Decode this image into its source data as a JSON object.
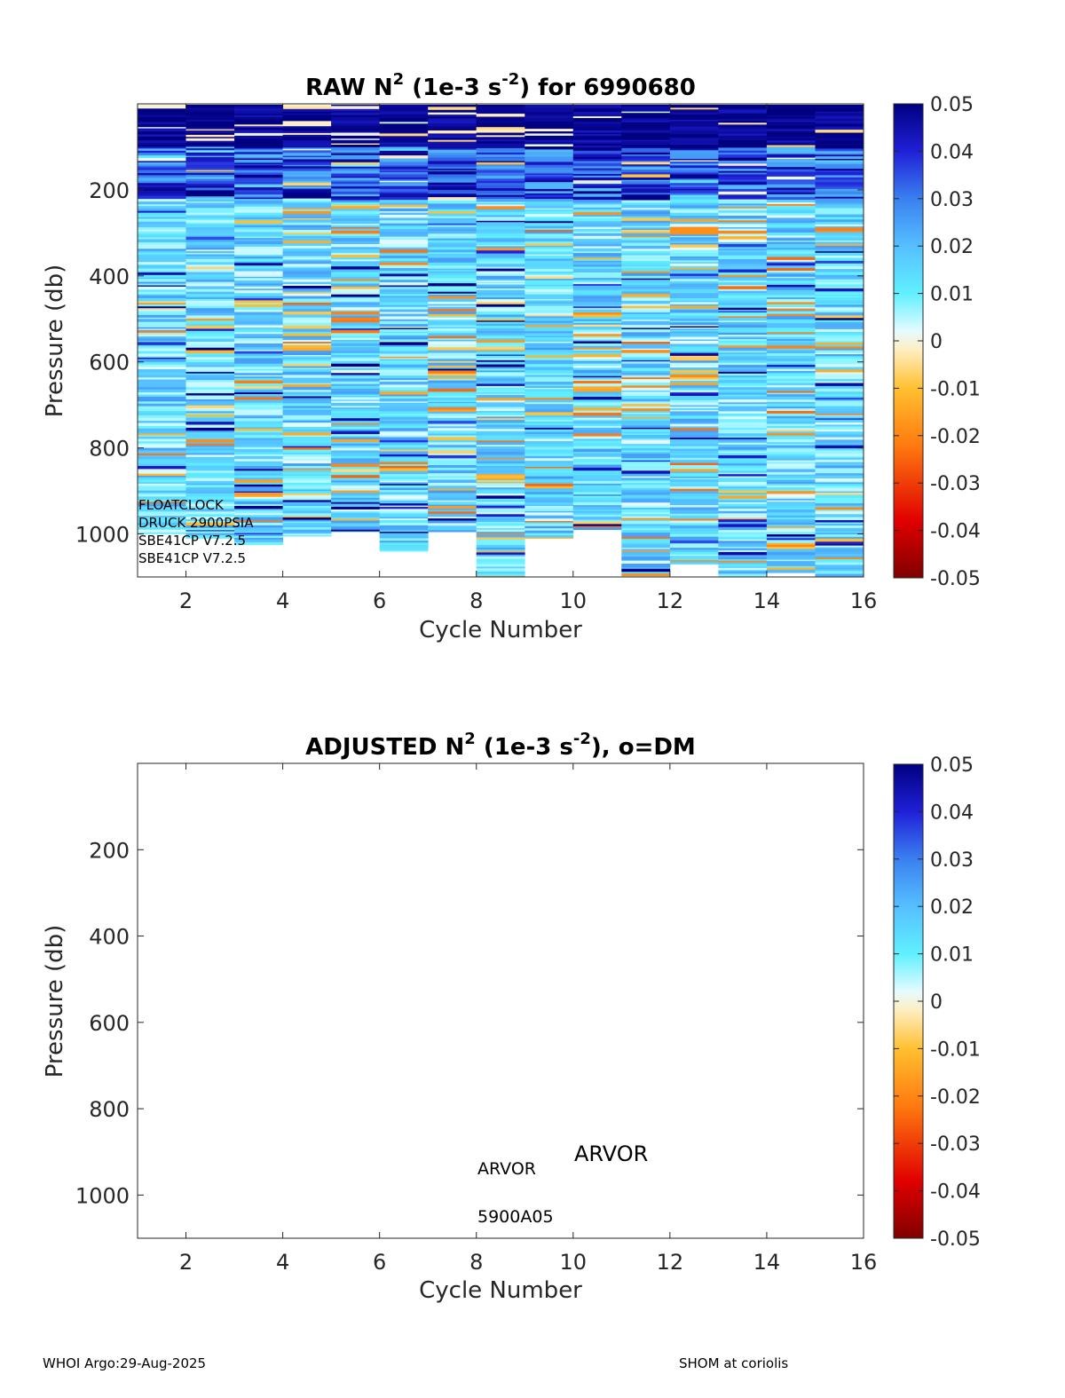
{
  "chart_data": [
    {
      "type": "heatmap",
      "title_parts": [
        "RAW N",
        "2",
        " (1e-3 s",
        "-2",
        ") for 6990680"
      ],
      "xlabel": "Cycle Number",
      "ylabel": "Pressure (db)",
      "xlim": [
        1,
        16
      ],
      "ylim": [
        1100,
        0
      ],
      "y_reversed": true,
      "xticks": [
        2,
        4,
        6,
        8,
        10,
        12,
        14,
        16
      ],
      "xtick_labels": [
        "2",
        "4",
        "6",
        "8",
        "10",
        "12",
        "14",
        "16"
      ],
      "yticks": [
        200,
        400,
        600,
        800,
        1000
      ],
      "ytick_labels": [
        "200",
        "400",
        "600",
        "800",
        "1000"
      ],
      "columns": [
        {
          "cycle": 1,
          "max_pressure": 1000
        },
        {
          "cycle": 2,
          "max_pressure": 1010
        },
        {
          "cycle": 3,
          "max_pressure": 1025
        },
        {
          "cycle": 4,
          "max_pressure": 1005
        },
        {
          "cycle": 5,
          "max_pressure": 995
        },
        {
          "cycle": 6,
          "max_pressure": 1040
        },
        {
          "cycle": 7,
          "max_pressure": 995
        },
        {
          "cycle": 8,
          "max_pressure": 1100
        },
        {
          "cycle": 9,
          "max_pressure": 1010
        },
        {
          "cycle": 10,
          "max_pressure": 990
        },
        {
          "cycle": 11,
          "max_pressure": 1100
        },
        {
          "cycle": 12,
          "max_pressure": 1070
        },
        {
          "cycle": 13,
          "max_pressure": 1100
        },
        {
          "cycle": 14,
          "max_pressure": 1090
        },
        {
          "cycle": 15,
          "max_pressure": 1100
        }
      ],
      "color_range": [
        -0.05,
        0.05
      ],
      "annotations": [
        "FLOATCLOCK",
        "DRUCK 2900PSIA",
        "SBE41CP V7.2.5",
        "SBE41CP V7.2.5"
      ],
      "colorbar_ticks": [
        "0.05",
        "0.04",
        "0.03",
        "0.02",
        "0.01",
        "0",
        "-0.01",
        "-0.02",
        "-0.03",
        "-0.04",
        "-0.05"
      ]
    },
    {
      "type": "heatmap",
      "title_parts": [
        "ADJUSTED N",
        "2",
        " (1e-3 s",
        "-2",
        "), o=DM"
      ],
      "xlabel": "Cycle Number",
      "ylabel": "Pressure (db)",
      "xlim": [
        1,
        16
      ],
      "ylim": [
        1100,
        0
      ],
      "y_reversed": true,
      "xticks": [
        2,
        4,
        6,
        8,
        10,
        12,
        14,
        16
      ],
      "xtick_labels": [
        "2",
        "4",
        "6",
        "8",
        "10",
        "12",
        "14",
        "16"
      ],
      "yticks": [
        200,
        400,
        600,
        800,
        1000
      ],
      "ytick_labels": [
        "200",
        "400",
        "600",
        "800",
        "1000"
      ],
      "columns": [],
      "color_range": [
        -0.05,
        0.05
      ],
      "annotations": [
        "ARVOR",
        "ARVOR",
        "5900A05"
      ],
      "colorbar_ticks": [
        "0.05",
        "0.04",
        "0.03",
        "0.02",
        "0.01",
        "0",
        "-0.01",
        "-0.02",
        "-0.03",
        "-0.04",
        "-0.05"
      ]
    }
  ],
  "footer": {
    "left": "WHOI Argo:29-Aug-2025",
    "right": "SHOM at coriolis"
  }
}
